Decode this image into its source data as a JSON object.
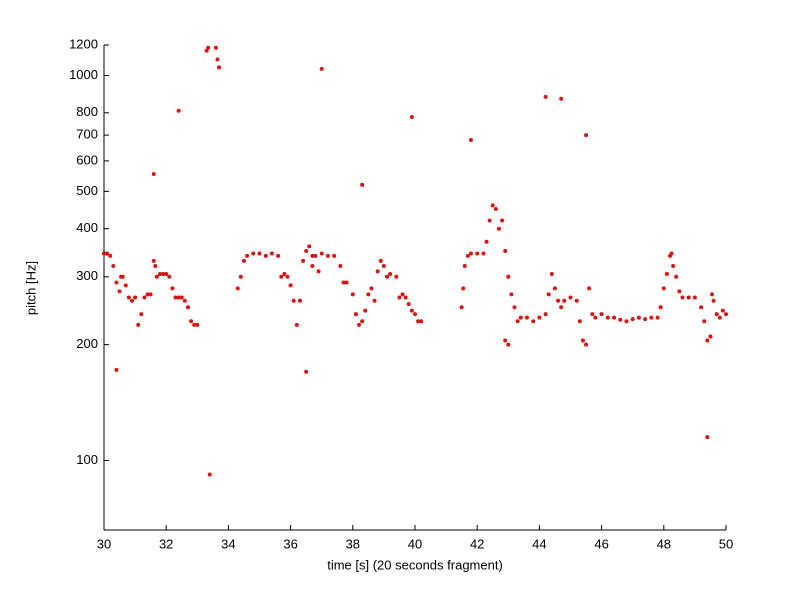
{
  "chart_data": {
    "type": "scatter",
    "xlabel": "time [s] (20 seconds fragment)",
    "ylabel": "pitch [Hz]",
    "yscale": "log",
    "xlim": [
      30,
      50
    ],
    "ylim": [
      66,
      1200
    ],
    "xticks": [
      30,
      32,
      34,
      36,
      38,
      40,
      42,
      44,
      46,
      48,
      50
    ],
    "yticks": [
      100,
      200,
      300,
      400,
      500,
      600,
      700,
      800,
      1000,
      1200
    ],
    "color": "#dd1111",
    "x": [
      30.0,
      30.1,
      30.2,
      30.3,
      30.4,
      30.5,
      30.55,
      30.6,
      30.7,
      30.8,
      30.9,
      31.0,
      31.1,
      31.2,
      31.3,
      31.4,
      31.5,
      31.6,
      31.65,
      31.7,
      31.8,
      31.9,
      32.0,
      32.1,
      32.2,
      32.3,
      32.4,
      32.5,
      32.6,
      32.7,
      32.8,
      32.9,
      33.0,
      30.4,
      31.6,
      32.4,
      33.3,
      33.35,
      33.6,
      33.65,
      33.7,
      33.4,
      34.3,
      34.4,
      34.5,
      34.6,
      34.8,
      35.0,
      35.2,
      35.4,
      35.6,
      35.7,
      35.8,
      35.9,
      36.0,
      36.1,
      36.2,
      36.3,
      36.4,
      36.5,
      36.6,
      36.7,
      36.8,
      37.0,
      37.2,
      37.4,
      37.6,
      37.7,
      37.8,
      38.0,
      38.1,
      38.2,
      38.3,
      38.4,
      38.5,
      38.6,
      38.7,
      38.8,
      38.9,
      39.0,
      39.1,
      39.2,
      39.4,
      39.5,
      39.6,
      39.7,
      39.8,
      39.9,
      40.0,
      40.1,
      40.2,
      36.5,
      37.0,
      36.9,
      38.3,
      39.9,
      36.7,
      41.5,
      41.55,
      41.6,
      41.7,
      41.8,
      42.0,
      42.2,
      42.3,
      42.4,
      42.5,
      42.6,
      42.7,
      42.8,
      42.9,
      43.0,
      43.1,
      43.2,
      43.3,
      43.4,
      43.6,
      43.8,
      44.0,
      44.2,
      44.3,
      44.4,
      44.5,
      44.6,
      44.7,
      44.8,
      45.0,
      45.2,
      45.3,
      45.4,
      45.5,
      45.6,
      45.7,
      45.8,
      46.0,
      46.2,
      46.4,
      46.6,
      46.8,
      47.0,
      47.2,
      47.4,
      47.6,
      47.8,
      47.9,
      48.0,
      48.1,
      48.2,
      48.25,
      48.3,
      48.4,
      48.5,
      48.6,
      48.8,
      49.0,
      49.2,
      49.3,
      49.4,
      49.5,
      49.55,
      49.6,
      49.7,
      49.8,
      49.9,
      50.0,
      41.8,
      42.9,
      43.0,
      44.2,
      44.7,
      45.5,
      49.4
    ],
    "values": [
      345,
      345,
      340,
      320,
      290,
      275,
      300,
      300,
      285,
      265,
      260,
      265,
      225,
      240,
      265,
      270,
      270,
      330,
      320,
      300,
      305,
      305,
      305,
      300,
      280,
      265,
      265,
      265,
      260,
      250,
      230,
      225,
      225,
      172,
      555,
      810,
      1160,
      1180,
      1180,
      1100,
      1050,
      92,
      280,
      300,
      330,
      340,
      345,
      345,
      340,
      345,
      340,
      300,
      305,
      300,
      285,
      260,
      225,
      260,
      330,
      350,
      360,
      340,
      340,
      345,
      340,
      340,
      320,
      290,
      290,
      270,
      240,
      225,
      230,
      245,
      270,
      280,
      260,
      310,
      330,
      320,
      300,
      305,
      300,
      265,
      270,
      265,
      255,
      245,
      240,
      230,
      230,
      170,
      1040,
      310,
      520,
      780,
      320,
      250,
      280,
      320,
      340,
      345,
      345,
      345,
      370,
      420,
      460,
      450,
      400,
      420,
      350,
      300,
      270,
      250,
      230,
      235,
      235,
      230,
      235,
      240,
      270,
      305,
      280,
      260,
      250,
      260,
      265,
      260,
      230,
      205,
      200,
      280,
      240,
      235,
      240,
      235,
      235,
      232,
      230,
      233,
      235,
      233,
      235,
      235,
      250,
      280,
      305,
      340,
      345,
      320,
      300,
      275,
      265,
      265,
      265,
      250,
      230,
      205,
      210,
      270,
      260,
      240,
      235,
      245,
      240,
      680,
      205,
      200,
      880,
      870,
      700,
      115
    ]
  }
}
